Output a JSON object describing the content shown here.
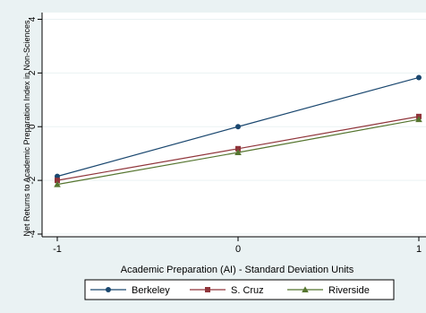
{
  "chart_data": {
    "type": "line",
    "title": "",
    "xlabel": "Academic Preparation (AI) - Standard Deviation Units",
    "ylabel": "Net Returns to Academic Preparation Index in Non-Sciences",
    "x": [
      -1,
      0,
      1
    ],
    "xticks": [
      -1,
      0,
      1
    ],
    "xtick_labels": [
      "-1",
      "0",
      "1"
    ],
    "yticks": [
      -4,
      -2,
      0,
      2,
      4
    ],
    "ytick_labels": [
      "-4",
      "-2",
      "0",
      "2",
      "4"
    ],
    "xlim": [
      -1,
      1
    ],
    "ylim": [
      -4.1,
      4.25
    ],
    "grid": "horizontal",
    "legend_position": "bottom",
    "series": [
      {
        "name": "Berkeley",
        "values": [
          -1.85,
          0.0,
          1.83
        ],
        "color": "#1a476f",
        "marker": "circle"
      },
      {
        "name": "S. Cruz",
        "values": [
          -2.0,
          -0.82,
          0.38
        ],
        "color": "#90353b",
        "marker": "square"
      },
      {
        "name": "Riverside",
        "values": [
          -2.15,
          -0.96,
          0.27
        ],
        "color": "#55752f",
        "marker": "triangle"
      }
    ],
    "colors": {
      "outer_background": "#eaf2f3",
      "plot_background": "#ffffff",
      "grid": "#eaf2f3",
      "axis": "#000000"
    }
  }
}
